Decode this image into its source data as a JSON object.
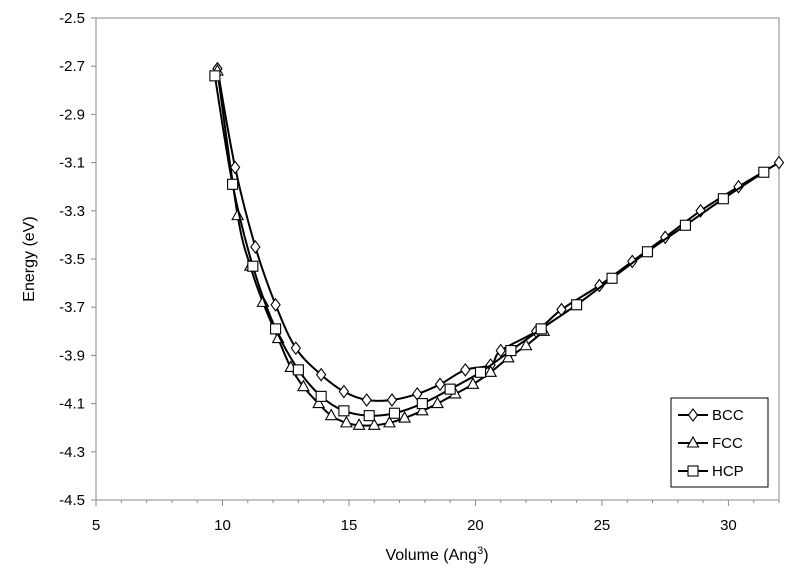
{
  "chart_data": {
    "type": "line",
    "title": "",
    "xlabel": "Volume (Ang",
    "xlabel_sup": "3",
    "xlabel_close": ")",
    "ylabel": "Energy (eV)",
    "xlim": [
      5,
      32
    ],
    "ylim": [
      -4.5,
      -2.5
    ],
    "xticks": [
      5,
      10,
      15,
      20,
      25,
      30
    ],
    "yticks": [
      -2.5,
      -2.7,
      -2.9,
      -3.1,
      -3.3,
      -3.5,
      -3.7,
      -3.9,
      -4.1,
      -4.3,
      -4.5
    ],
    "xtick_labels": [
      "5",
      "10",
      "15",
      "20",
      "25",
      "30"
    ],
    "ytick_labels": [
      "-2.5",
      "-2.7",
      "-2.9",
      "-3.1",
      "-3.3",
      "-3.5",
      "-3.7",
      "-3.9",
      "-4.1",
      "-4.3",
      "-4.5"
    ],
    "grid": false,
    "legend_position": "bottom-right",
    "series": [
      {
        "name": "BCC",
        "marker": "diamond",
        "points": [
          [
            9.8,
            -2.71
          ],
          [
            10.5,
            -3.12
          ],
          [
            11.3,
            -3.45
          ],
          [
            12.1,
            -3.69
          ],
          [
            12.9,
            -3.87
          ],
          [
            13.9,
            -3.98
          ],
          [
            14.8,
            -4.05
          ],
          [
            15.7,
            -4.085
          ],
          [
            16.7,
            -4.085
          ],
          [
            17.7,
            -4.06
          ],
          [
            18.6,
            -4.02
          ],
          [
            19.6,
            -3.96
          ],
          [
            20.6,
            -3.94
          ],
          [
            21.0,
            -3.88
          ],
          [
            22.4,
            -3.8
          ],
          [
            23.4,
            -3.71
          ],
          [
            24.9,
            -3.61
          ],
          [
            26.2,
            -3.51
          ],
          [
            27.5,
            -3.41
          ],
          [
            28.9,
            -3.3
          ],
          [
            30.4,
            -3.2
          ],
          [
            32.0,
            -3.1
          ]
        ]
      },
      {
        "name": "FCC",
        "marker": "triangle",
        "points": [
          [
            9.8,
            -2.72
          ],
          [
            10.6,
            -3.32
          ],
          [
            11.1,
            -3.53
          ],
          [
            11.6,
            -3.68
          ],
          [
            12.2,
            -3.83
          ],
          [
            12.7,
            -3.95
          ],
          [
            13.2,
            -4.03
          ],
          [
            13.8,
            -4.1
          ],
          [
            14.3,
            -4.15
          ],
          [
            14.9,
            -4.18
          ],
          [
            15.4,
            -4.19
          ],
          [
            16.0,
            -4.19
          ],
          [
            16.6,
            -4.18
          ],
          [
            17.2,
            -4.16
          ],
          [
            17.9,
            -4.13
          ],
          [
            18.5,
            -4.1
          ],
          [
            19.2,
            -4.06
          ],
          [
            19.9,
            -4.02
          ],
          [
            20.6,
            -3.97
          ],
          [
            21.3,
            -3.91
          ],
          [
            22.0,
            -3.86
          ],
          [
            22.7,
            -3.8
          ]
        ]
      },
      {
        "name": "HCP",
        "marker": "square",
        "points": [
          [
            9.7,
            -2.74
          ],
          [
            10.4,
            -3.19
          ],
          [
            11.2,
            -3.53
          ],
          [
            12.1,
            -3.79
          ],
          [
            13.0,
            -3.96
          ],
          [
            13.9,
            -4.07
          ],
          [
            14.8,
            -4.13
          ],
          [
            15.8,
            -4.15
          ],
          [
            16.8,
            -4.14
          ],
          [
            17.9,
            -4.1
          ],
          [
            19.0,
            -4.04
          ],
          [
            20.2,
            -3.97
          ],
          [
            21.4,
            -3.88
          ],
          [
            22.6,
            -3.79
          ],
          [
            24.0,
            -3.69
          ],
          [
            25.4,
            -3.58
          ],
          [
            26.8,
            -3.47
          ],
          [
            28.3,
            -3.36
          ],
          [
            29.8,
            -3.25
          ],
          [
            31.4,
            -3.14
          ]
        ]
      }
    ]
  }
}
